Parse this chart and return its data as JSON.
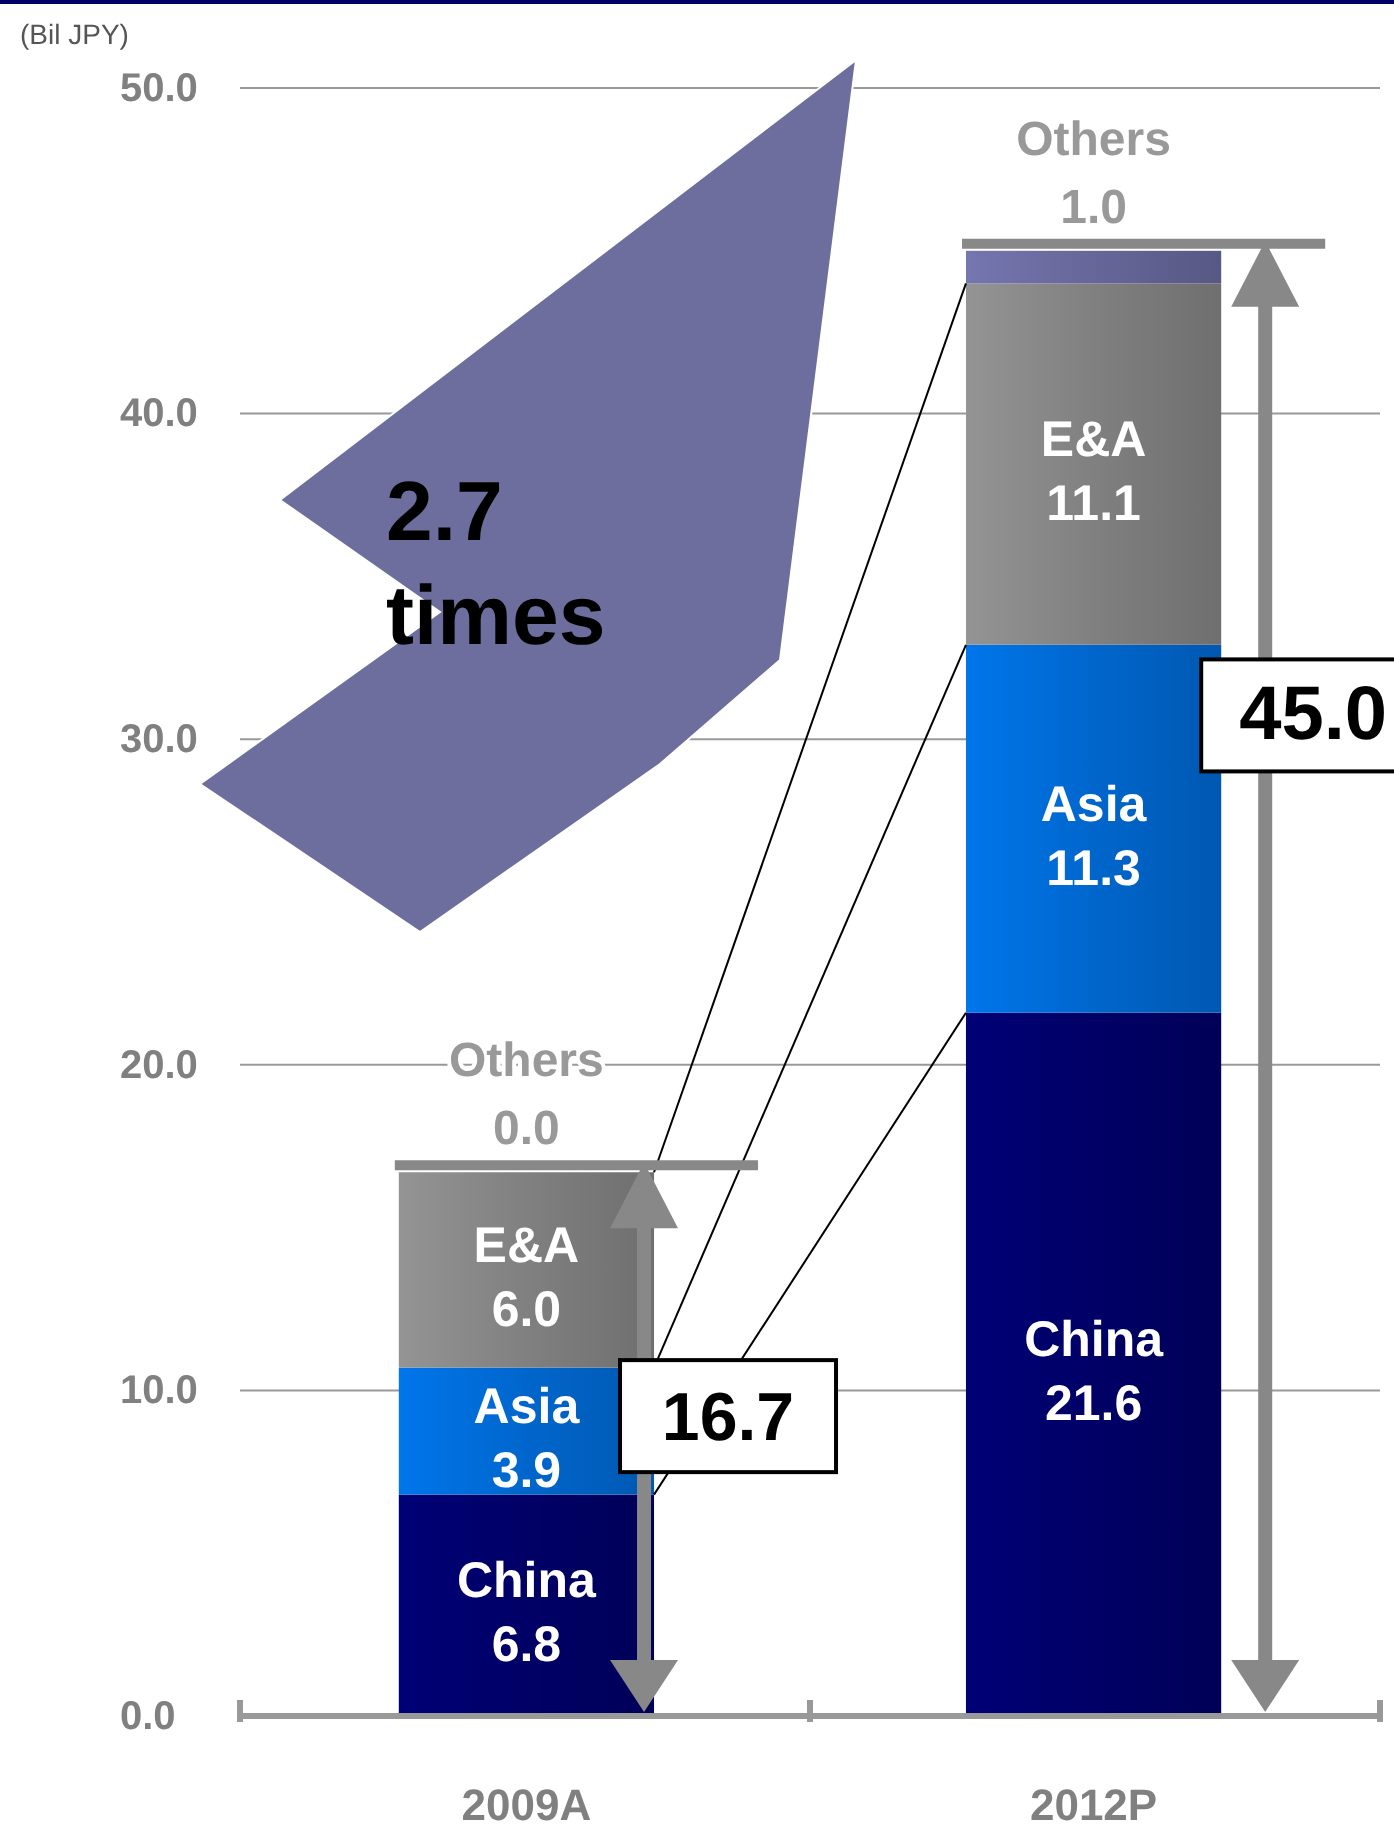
{
  "chart_data": {
    "type": "bar",
    "stacked": true,
    "ylabel": "(Bil JPY)",
    "categories": [
      "2009A",
      "2012P"
    ],
    "series": [
      {
        "name": "China",
        "color": "#000066",
        "values": [
          6.8,
          21.6
        ],
        "value_labels": [
          "6.8",
          "21.6"
        ]
      },
      {
        "name": "Asia",
        "color": "#0066cc",
        "values": [
          3.9,
          11.3
        ],
        "value_labels": [
          "3.9",
          "11.3"
        ]
      },
      {
        "name": "E&A",
        "color": "#808080",
        "values": [
          6.0,
          11.1
        ],
        "value_labels": [
          "6.0",
          "11.1"
        ]
      },
      {
        "name": "Others",
        "color": "#666699",
        "values": [
          0.0,
          1.0
        ],
        "value_labels": [
          "0.0",
          "1.0"
        ]
      }
    ],
    "totals": [
      "16.7",
      "45.0"
    ],
    "ylim": [
      0,
      50
    ],
    "yticks": [
      {
        "value": 0,
        "label": "0.0"
      },
      {
        "value": 10,
        "label": "10.0"
      },
      {
        "value": 20,
        "label": "20.0"
      },
      {
        "value": 30,
        "label": "30.0"
      },
      {
        "value": 40,
        "label": "40.0"
      },
      {
        "value": 50,
        "label": "50.0"
      }
    ],
    "grid": "y",
    "annotations": [
      "2.7\ntimes"
    ]
  }
}
